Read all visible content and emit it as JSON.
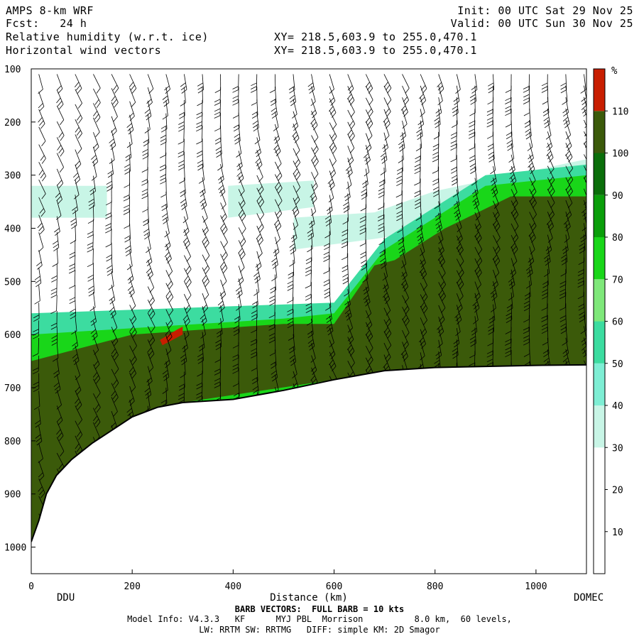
{
  "header": {
    "model": "AMPS 8-km WRF",
    "init": "Init: 00 UTC Sat 29 Nov 25",
    "fcst": "Fcst:   24 h",
    "valid": "Valid: 00 UTC Sun 30 Nov 25",
    "field1": "Relative humidity (w.r.t. ice)",
    "field2": "Horizontal wind vectors",
    "xy1": "XY= 218.5,603.9 to 255.0,470.1",
    "xy2": "XY= 218.5,603.9 to 255.0,470.1"
  },
  "chart_data": {
    "type": "heatmap",
    "title": "Relative humidity (w.r.t. ice)",
    "xlabel": "Distance (km)",
    "ylabel": "",
    "xlim": [
      0,
      1100
    ],
    "ylim": [
      1050,
      100
    ],
    "x_ticks": [
      "0",
      "200",
      "400",
      "600",
      "800",
      "1000"
    ],
    "x_tick_values": [
      0,
      200,
      400,
      600,
      800,
      1000
    ],
    "y_ticks": [
      "100",
      "200",
      "300",
      "400",
      "500",
      "600",
      "700",
      "800",
      "900",
      "1000"
    ],
    "y_tick_values": [
      100,
      200,
      300,
      400,
      500,
      600,
      700,
      800,
      900,
      1000
    ],
    "left_endpoint": "DDU",
    "right_endpoint": "DOMEC",
    "colorbar": {
      "unit": "%",
      "levels": [
        10,
        20,
        30,
        40,
        50,
        60,
        70,
        80,
        90,
        100,
        110
      ],
      "level_labels": [
        "10",
        "20",
        "30",
        "40",
        "50",
        "60",
        "70",
        "80",
        "90",
        "100",
        "110"
      ],
      "colors": [
        "#ffffff",
        "#ffffff",
        "#ffffff",
        "#c8f5e6",
        "#7eeed4",
        "#3cdca0",
        "#7fe87a",
        "#19d619",
        "#0a9e0a",
        "#0a6e0a",
        "#3b5a0a",
        "#c81e00"
      ]
    },
    "terrain_pressure": [
      {
        "x": 0,
        "p": 990
      },
      {
        "x": 15,
        "p": 950
      },
      {
        "x": 30,
        "p": 900
      },
      {
        "x": 50,
        "p": 865
      },
      {
        "x": 80,
        "p": 835
      },
      {
        "x": 120,
        "p": 805
      },
      {
        "x": 160,
        "p": 780
      },
      {
        "x": 200,
        "p": 755
      },
      {
        "x": 250,
        "p": 737
      },
      {
        "x": 300,
        "p": 728
      },
      {
        "x": 400,
        "p": 722
      },
      {
        "x": 500,
        "p": 705
      },
      {
        "x": 600,
        "p": 685
      },
      {
        "x": 700,
        "p": 668
      },
      {
        "x": 800,
        "p": 662
      },
      {
        "x": 900,
        "p": 660
      },
      {
        "x": 1000,
        "p": 658
      },
      {
        "x": 1100,
        "p": 657
      }
    ],
    "rh_regions": [
      {
        "level": 40,
        "color": "#c8f5e6",
        "points": [
          [
            0,
            320
          ],
          [
            150,
            320
          ],
          [
            150,
            380
          ],
          [
            0,
            380
          ]
        ]
      },
      {
        "level": 40,
        "color": "#c8f5e6",
        "points": [
          [
            390,
            320
          ],
          [
            560,
            310
          ],
          [
            560,
            360
          ],
          [
            390,
            380
          ]
        ]
      },
      {
        "level": 40,
        "color": "#c8f5e6",
        "points": [
          [
            520,
            380
          ],
          [
            680,
            370
          ],
          [
            800,
            330
          ],
          [
            1100,
            270
          ],
          [
            1100,
            300
          ],
          [
            820,
            400
          ],
          [
            680,
            420
          ],
          [
            520,
            440
          ]
        ]
      },
      {
        "level": 60,
        "color": "#3cdca0",
        "points": [
          [
            0,
            560
          ],
          [
            600,
            540
          ],
          [
            700,
            420
          ],
          [
            900,
            300
          ],
          [
            1100,
            280
          ],
          [
            1100,
            660
          ],
          [
            0,
            990
          ]
        ]
      },
      {
        "level": 80,
        "color": "#19d619",
        "points": [
          [
            0,
            600
          ],
          [
            500,
            570
          ],
          [
            600,
            560
          ],
          [
            700,
            440
          ],
          [
            900,
            320
          ],
          [
            1100,
            300
          ],
          [
            1100,
            660
          ],
          [
            0,
            990
          ]
        ]
      },
      {
        "level": 100,
        "color": "#3b5a0a",
        "points": [
          [
            0,
            650
          ],
          [
            200,
            600
          ],
          [
            500,
            580
          ],
          [
            600,
            580
          ],
          [
            680,
            470
          ],
          [
            720,
            460
          ],
          [
            820,
            400
          ],
          [
            950,
            340
          ],
          [
            1100,
            340
          ],
          [
            1100,
            660
          ],
          [
            600,
            685
          ],
          [
            300,
            728
          ],
          [
            160,
            780
          ],
          [
            50,
            865
          ],
          [
            0,
            990
          ]
        ]
      },
      {
        "level": 110,
        "color": "#c81e00",
        "points": [
          [
            255,
            610
          ],
          [
            290,
            590
          ],
          [
            300,
            585
          ],
          [
            300,
            600
          ],
          [
            260,
            620
          ]
        ]
      }
    ],
    "wind_barbs": {
      "columns_every_km": 30,
      "levels": "model levels",
      "description": "Horizontal wind vectors"
    }
  },
  "footer": {
    "barb_note": "BARB VECTORS:  FULL BARB = 10 kts",
    "model_info": "Model Info: V4.3.3   KF      MYJ PBL  Morrison          8.0 km,  60 levels,",
    "physics": "LW: RRTM SW: RRTMG   DIFF: simple KM: 2D Smagor"
  }
}
